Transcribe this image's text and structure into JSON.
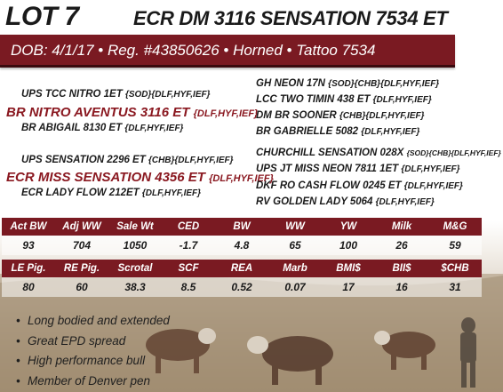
{
  "header": {
    "lot": "LOT 7",
    "name": "ECR DM 3116 SENSATION 7534 ET"
  },
  "info_bar": "DOB: 4/1/17 • Reg. #43850626 • Horned • Tattoo 7534",
  "pedigree": {
    "sire_sire": {
      "name": "UPS TCC NITRO 1ET",
      "suffix": "{SOD}{DLF,HYF,IEF}"
    },
    "sire": {
      "name": "BR NITRO AVENTUS 3116 ET",
      "suffix": "{DLF,HYF,IEF}"
    },
    "sire_dam": {
      "name": "BR ABIGAIL 8130 ET",
      "suffix": "{DLF,HYF,IEF}"
    },
    "ss_sire": {
      "name": "GH NEON 17N",
      "suffix": "{SOD}{CHB}{DLF,HYF,IEF}"
    },
    "ss_dam": {
      "name": "LCC TWO TIMIN 438 ET",
      "suffix": "{DLF,HYF,IEF}"
    },
    "sd_sire": {
      "name": "DM BR SOONER",
      "suffix": "{CHB}{DLF,HYF,IEF}"
    },
    "sd_dam": {
      "name": "BR GABRIELLE 5082",
      "suffix": "{DLF,HYF,IEF}"
    },
    "dam_sire": {
      "name": "UPS SENSATION 2296 ET",
      "suffix": "{CHB}{DLF,HYF,IEF}"
    },
    "dam": {
      "name": "ECR MISS SENSATION 4356 ET",
      "suffix": "{DLF,HYF,IEF}"
    },
    "dam_dam": {
      "name": "ECR LADY FLOW 212ET",
      "suffix": "{DLF,HYF,IEF}"
    },
    "ds_sire": {
      "name": "CHURCHILL SENSATION 028X",
      "suffix": "{SOD}{CHB}{DLF,HYF,IEF}"
    },
    "ds_dam": {
      "name": "UPS JT MISS NEON 7811 1ET",
      "suffix": "{DLF,HYF,IEF}"
    },
    "dd_sire": {
      "name": "DKF RO CASH FLOW 0245 ET",
      "suffix": "{DLF,HYF,IEF}"
    },
    "dd_dam": {
      "name": "RV GOLDEN LADY 5064",
      "suffix": "{DLF,HYF,IEF}"
    }
  },
  "stats_row1": {
    "headers": [
      "Act BW",
      "Adj WW",
      "Sale Wt",
      "CED",
      "BW",
      "WW",
      "YW",
      "Milk",
      "M&G"
    ],
    "values": [
      "93",
      "704",
      "1050",
      "-1.7",
      "4.8",
      "65",
      "100",
      "26",
      "59"
    ]
  },
  "stats_row2": {
    "headers": [
      "LE Pig.",
      "RE Pig.",
      "Scrotal",
      "SCF",
      "REA",
      "Marb",
      "BMI$",
      "BII$",
      "$CHB"
    ],
    "values": [
      "80",
      "60",
      "38.3",
      "8.5",
      "0.52",
      "0.07",
      "17",
      "16",
      "31"
    ]
  },
  "bullets": [
    "Long bodied and extended",
    "Great EPD spread",
    "High performance bull",
    "Member of Denver pen"
  ],
  "colors": {
    "brand": "#7a1a22",
    "accent_text": "#8a1820"
  }
}
